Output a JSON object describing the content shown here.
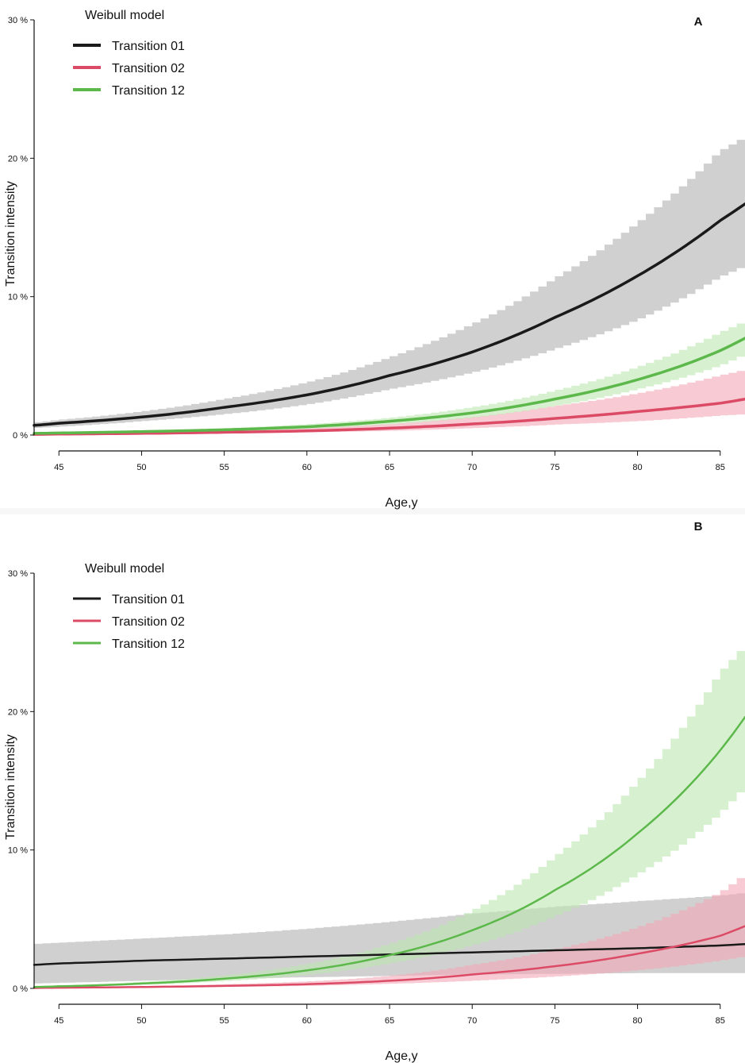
{
  "colors": {
    "t01": "#1a1a1a",
    "t02": "#dc4b66",
    "t12": "#5cb84a",
    "band_t01": "#aaaaaa",
    "band_t02": "#f4a8b8",
    "band_t12": "#bde8b0"
  },
  "chart_data": [
    {
      "type": "line",
      "panel": "A",
      "title": "Weibull model",
      "xlabel": "Age,y",
      "ylabel": "Transition intensity",
      "xlim": [
        43.5,
        86.5
      ],
      "ylim": [
        0,
        30
      ],
      "xticks": [
        45,
        50,
        55,
        60,
        65,
        70,
        75,
        80,
        85
      ],
      "yticks": [
        0,
        10,
        20,
        30
      ],
      "ytick_labels": [
        "0 %",
        "10 %",
        "20 %",
        "30 %"
      ],
      "x": [
        43.5,
        45,
        50,
        55,
        60,
        65,
        70,
        75,
        80,
        85,
        86.5
      ],
      "series": [
        {
          "name": "Transition 01",
          "color_key": "t01",
          "values": [
            0.7,
            0.85,
            1.3,
            2.0,
            2.9,
            4.3,
            6.0,
            8.5,
            11.5,
            15.5,
            16.7
          ],
          "lower": [
            0.5,
            0.6,
            1.0,
            1.5,
            2.2,
            3.3,
            4.5,
            6.2,
            8.3,
            11.4,
            12.2
          ],
          "upper": [
            0.9,
            1.1,
            1.7,
            2.6,
            3.8,
            5.6,
            8.0,
            11.3,
            15.3,
            20.5,
            21.5
          ]
        },
        {
          "name": "Transition 02",
          "color_key": "t02",
          "values": [
            0.05,
            0.07,
            0.12,
            0.2,
            0.3,
            0.5,
            0.8,
            1.2,
            1.7,
            2.3,
            2.6
          ],
          "lower": [
            0.03,
            0.04,
            0.07,
            0.12,
            0.2,
            0.3,
            0.5,
            0.75,
            1.0,
            1.4,
            1.5
          ],
          "upper": [
            0.08,
            0.1,
            0.18,
            0.3,
            0.5,
            0.8,
            1.3,
            2.1,
            3.0,
            4.3,
            4.7
          ]
        },
        {
          "name": "Transition 12",
          "color_key": "t12",
          "values": [
            0.12,
            0.15,
            0.25,
            0.38,
            0.6,
            1.0,
            1.6,
            2.6,
            4.0,
            6.1,
            7.0
          ],
          "lower": [
            0.08,
            0.1,
            0.18,
            0.28,
            0.45,
            0.78,
            1.25,
            2.1,
            3.3,
            5.0,
            5.8
          ],
          "upper": [
            0.16,
            0.2,
            0.33,
            0.5,
            0.78,
            1.25,
            2.0,
            3.2,
            4.9,
            7.4,
            8.2
          ]
        }
      ]
    },
    {
      "type": "line",
      "panel": "B",
      "title": "Weibull model",
      "xlabel": "Age,y",
      "ylabel": "Transition intensity",
      "xlim": [
        43.5,
        86.5
      ],
      "ylim": [
        0,
        30
      ],
      "xticks": [
        45,
        50,
        55,
        60,
        65,
        70,
        75,
        80,
        85
      ],
      "yticks": [
        0,
        10,
        20,
        30
      ],
      "ytick_labels": [
        "0 %",
        "10 %",
        "20 %",
        "30 %"
      ],
      "x": [
        43.5,
        45,
        50,
        55,
        60,
        65,
        70,
        75,
        80,
        85,
        86.5
      ],
      "series": [
        {
          "name": "Transition 01",
          "color_key": "t01",
          "values": [
            1.7,
            1.8,
            2.0,
            2.15,
            2.3,
            2.45,
            2.6,
            2.75,
            2.9,
            3.1,
            3.2
          ],
          "lower": [
            0.35,
            0.4,
            0.55,
            0.7,
            0.8,
            0.9,
            1.0,
            1.05,
            1.1,
            1.1,
            1.1
          ],
          "upper": [
            3.2,
            3.3,
            3.6,
            3.9,
            4.3,
            4.8,
            5.4,
            5.9,
            6.3,
            6.7,
            6.9
          ]
        },
        {
          "name": "Transition 02",
          "color_key": "t02",
          "values": [
            0.03,
            0.05,
            0.1,
            0.18,
            0.3,
            0.55,
            1.0,
            1.6,
            2.5,
            3.8,
            4.5
          ],
          "lower": [
            0.02,
            0.03,
            0.06,
            0.11,
            0.18,
            0.33,
            0.55,
            0.85,
            1.3,
            2.0,
            2.3
          ],
          "upper": [
            0.05,
            0.08,
            0.16,
            0.3,
            0.5,
            0.9,
            1.7,
            2.8,
            4.4,
            6.9,
            8.2
          ]
        },
        {
          "name": "Transition 12",
          "color_key": "t12",
          "values": [
            0.1,
            0.15,
            0.35,
            0.7,
            1.3,
            2.4,
            4.2,
            7.1,
            11.2,
            17.2,
            19.6
          ],
          "lower": [
            0.08,
            0.11,
            0.26,
            0.52,
            0.98,
            1.8,
            3.1,
            5.2,
            8.2,
            12.6,
            14.5
          ],
          "upper": [
            0.13,
            0.2,
            0.47,
            0.94,
            1.75,
            3.2,
            5.6,
            9.5,
            14.9,
            22.8,
            24.7
          ]
        }
      ]
    }
  ]
}
